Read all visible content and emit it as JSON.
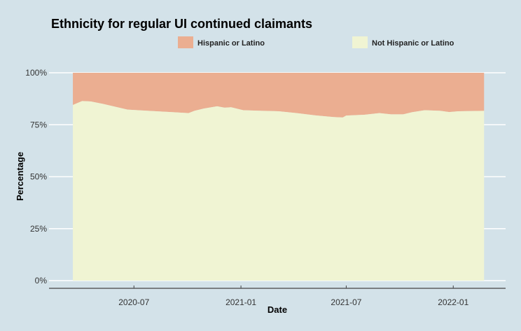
{
  "chart_data": {
    "type": "area",
    "stacked": true,
    "percent": true,
    "title": "Ethnicity for regular UI continued claimants",
    "xlabel": "Date",
    "ylabel": "Percentage",
    "legend": {
      "position": "top",
      "entries": [
        "Hispanic or Latino",
        "Not Hispanic or Latino"
      ]
    },
    "colors": {
      "Hispanic or Latino": "#ebae91",
      "Not Hispanic or Latino": "#f0f4d3",
      "background": "#d3e2e9",
      "grid": "#ffffff",
      "axis": "#444444"
    },
    "xlim": [
      "2020-02-06",
      "2022-04-01"
    ],
    "ylim": [
      0,
      100
    ],
    "x_ticks": [
      "2020-07",
      "2021-01",
      "2021-07",
      "2022-01"
    ],
    "y_ticks": [
      0,
      25,
      50,
      75,
      100
    ],
    "y_tick_labels": [
      "0%",
      "25%",
      "50%",
      "75%",
      "100%"
    ],
    "x": [
      "2020-03-18",
      "2020-04-03",
      "2020-04-18",
      "2020-05-09",
      "2020-06-20",
      "2020-07-26",
      "2020-09-02",
      "2020-10-03",
      "2020-10-13",
      "2020-10-29",
      "2020-11-21",
      "2020-12-04",
      "2020-12-15",
      "2021-01-05",
      "2021-02-06",
      "2021-03-07",
      "2021-04-07",
      "2021-05-09",
      "2021-06-09",
      "2021-06-25",
      "2021-07-01",
      "2021-08-01",
      "2021-08-27",
      "2021-09-16",
      "2021-10-07",
      "2021-10-22",
      "2021-11-13",
      "2021-12-10",
      "2021-12-25",
      "2022-01-10",
      "2022-02-23"
    ],
    "series": [
      {
        "name": "Not Hispanic or Latino",
        "values": [
          84.5,
          86.4,
          86.2,
          85.0,
          82.3,
          81.7,
          81.1,
          80.6,
          81.7,
          82.8,
          83.9,
          83.2,
          83.4,
          82.0,
          81.7,
          81.5,
          80.6,
          79.5,
          78.7,
          78.5,
          79.4,
          79.8,
          80.6,
          80.0,
          80.0,
          81.0,
          82.0,
          81.7,
          81.1,
          81.5,
          81.7
        ]
      },
      {
        "name": "Hispanic or Latino",
        "values": [
          15.5,
          13.6,
          13.8,
          15.0,
          17.7,
          18.3,
          18.9,
          19.4,
          18.3,
          17.2,
          16.1,
          16.8,
          16.6,
          18.0,
          18.3,
          18.5,
          19.4,
          20.5,
          21.3,
          21.5,
          20.6,
          20.2,
          19.4,
          20.0,
          20.0,
          19.0,
          18.0,
          18.3,
          18.9,
          18.5,
          18.3
        ]
      }
    ]
  }
}
